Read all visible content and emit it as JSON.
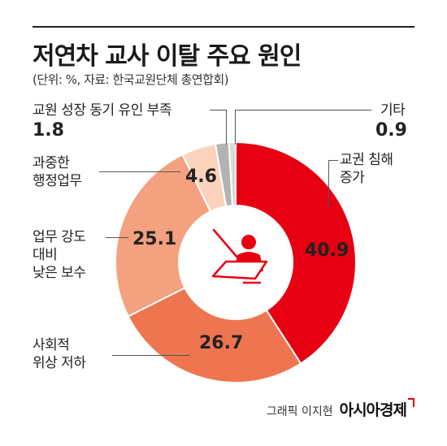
{
  "title": "저연차 교사 이탈 주요 원인",
  "subtitle": "(단위: %, 자료: 한국교원단체 총연합회)",
  "credit": "그래픽 이지현",
  "brand": "아시아경제",
  "chart_data": {
    "type": "pie",
    "variant": "donut",
    "title": "저연차 교사 이탈 주요 원인",
    "unit": "%",
    "slices": [
      {
        "label": "교권 침해 증가",
        "value": 40.9,
        "color": "#e60012"
      },
      {
        "label": "사회적 위상 저하",
        "value": 26.7,
        "color": "#ee7550"
      },
      {
        "label": "업무 강도 대비 낮은 보수",
        "value": 25.1,
        "color": "#f4a17f"
      },
      {
        "label": "과중한 행정업무",
        "value": 4.6,
        "color": "#fbd2bc"
      },
      {
        "label": "교원 성장 동기 유인 부족",
        "value": 1.8,
        "color": "#b3b3b3"
      },
      {
        "label": "기타",
        "value": 0.9,
        "color": "#d9d9d9"
      }
    ],
    "labels": {
      "violation": {
        "line1": "교권 침해",
        "line2": "증가",
        "value": "40.9"
      },
      "status": {
        "line1": "사회적",
        "line2": "위상 저하",
        "value": "26.7"
      },
      "workload": {
        "line1": "업무 강도",
        "line2": "대비",
        "line3": "낮은 보수",
        "value": "25.1"
      },
      "admin": {
        "line1": "과중한",
        "line2": "행정업무",
        "value": "4.6"
      },
      "growth": {
        "line1": "교원 성장 동기 유인 부족",
        "value": "1.8"
      },
      "other": {
        "line1": "기타",
        "value": "0.9"
      }
    }
  },
  "icon": "teacher-at-desk-icon"
}
